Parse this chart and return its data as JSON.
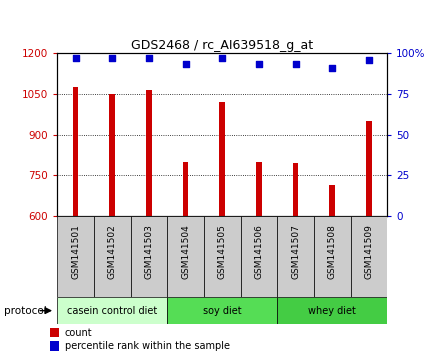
{
  "title": "GDS2468 / rc_AI639518_g_at",
  "samples": [
    "GSM141501",
    "GSM141502",
    "GSM141503",
    "GSM141504",
    "GSM141505",
    "GSM141506",
    "GSM141507",
    "GSM141508",
    "GSM141509"
  ],
  "counts": [
    1075,
    1050,
    1065,
    800,
    1020,
    800,
    795,
    715,
    950
  ],
  "percentile_ranks": [
    97,
    97,
    97,
    93,
    97,
    93,
    93,
    91,
    96
  ],
  "ylim_left": [
    600,
    1200
  ],
  "ylim_right": [
    0,
    100
  ],
  "yticks_left": [
    600,
    750,
    900,
    1050,
    1200
  ],
  "yticks_right": [
    0,
    25,
    50,
    75,
    100
  ],
  "groups": [
    {
      "label": "casein control diet",
      "start": 0,
      "end": 3,
      "color": "#ccffcc"
    },
    {
      "label": "soy diet",
      "start": 3,
      "end": 6,
      "color": "#55dd55"
    },
    {
      "label": "whey diet",
      "start": 6,
      "end": 9,
      "color": "#44cc44"
    }
  ],
  "bar_color": "#cc0000",
  "scatter_color": "#0000cc",
  "protocol_label": "protocol",
  "legend_count_label": "count",
  "legend_percentile_label": "percentile rank within the sample",
  "tick_label_bg": "#cccccc",
  "bg_color": "#ffffff",
  "plot_bg": "#ffffff"
}
